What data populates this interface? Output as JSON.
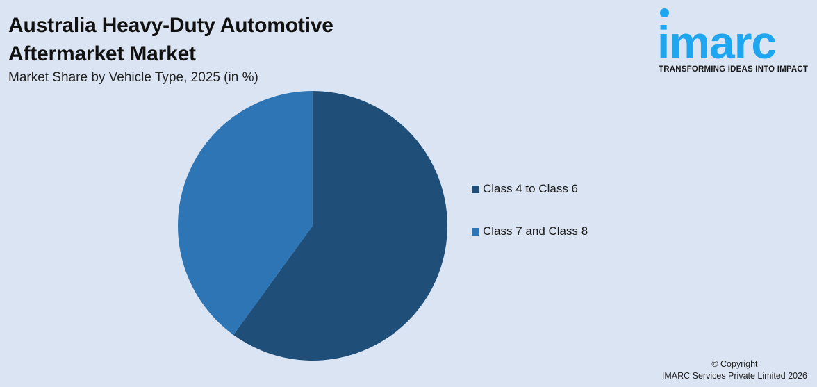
{
  "header": {
    "title_line1": "Australia Heavy-Duty Automotive",
    "title_line2": "Aftermarket Market",
    "subtitle": "Market Share by Vehicle Type, 2025 (in %)"
  },
  "logo": {
    "wordmark": "imarc",
    "tagline": "TRANSFORMING IDEAS INTO IMPACT",
    "color": "#1ea7f0"
  },
  "legend": [
    {
      "label": "Class 4 to Class 6",
      "color": "#1f4e79"
    },
    {
      "label": "Class 7 and Class 8",
      "color": "#2e75b6"
    }
  ],
  "footer": {
    "copyright_line1": "© Copyright",
    "copyright_line2": "IMARC Services Private Limited 2026"
  },
  "chart_data": {
    "type": "pie",
    "title": "Australia Heavy-Duty Automotive Aftermarket Market",
    "subtitle": "Market Share by Vehicle Type, 2025 (in %)",
    "categories": [
      "Class 4 to Class 6",
      "Class 7 and Class 8"
    ],
    "values": [
      60,
      40
    ],
    "colors": [
      "#1f4e79",
      "#2e75b6"
    ],
    "start_angle": "12 o'clock, clockwise",
    "legend_position": "right",
    "data_labels": false
  }
}
